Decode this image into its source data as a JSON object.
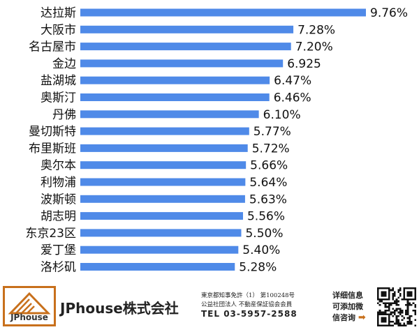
{
  "chart_data": {
    "type": "bar",
    "orientation": "horizontal",
    "categories": [
      "达拉斯",
      "大阪市",
      "名古屋市",
      "金边",
      "盐湖城",
      "奥斯汀",
      "丹佛",
      "曼切斯特",
      "布里斯班",
      "奥尔本",
      "利物浦",
      "波斯顿",
      "胡志明",
      "东京23区",
      "爱丁堡",
      "洛杉矶"
    ],
    "values": [
      9.76,
      7.28,
      7.2,
      6.925,
      6.47,
      6.46,
      6.1,
      5.77,
      5.72,
      5.66,
      5.64,
      5.63,
      5.56,
      5.5,
      5.4,
      5.28
    ],
    "value_labels": [
      "9.76%",
      "7.28%",
      "7.20%",
      "6.925",
      "6.47%",
      "6.46%",
      "6.10%",
      "5.77%",
      "5.72%",
      "5.66%",
      "5.64%",
      "5.63%",
      "5.56%",
      "5.50%",
      "5.40%",
      "5.28%"
    ],
    "xlim": [
      0,
      9.76
    ],
    "grid": false,
    "colors": {
      "bar": "#4f8ae8"
    }
  },
  "footer": {
    "logo_text": "JPhouse",
    "company": "JPhouse株式会社",
    "license_lines": [
      "東京都知事免許（1） 第100248号",
      "公益社団法人 不動産保証協会会員"
    ],
    "tel": "TEL 03-5957-2588",
    "info_lines": [
      "详细信息",
      "可添加微",
      "信咨询"
    ],
    "accent_color": "#c8701c",
    "arrow_icon": "arrow-right-icon"
  }
}
